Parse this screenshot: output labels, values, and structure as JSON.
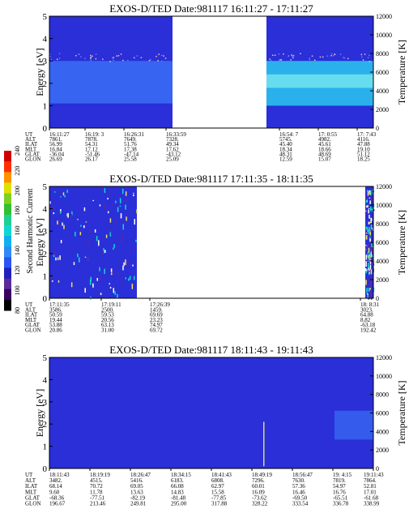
{
  "colorbar": {
    "label": "Second Harmonic Current",
    "ticks": [
      "80",
      "100",
      "120",
      "140",
      "160",
      "180",
      "200",
      "220",
      "240"
    ],
    "colors": [
      "#000000",
      "#3a0060",
      "#5a2a9a",
      "#2020c0",
      "#2a55f0",
      "#2f8af5",
      "#10b0f0",
      "#10d8d0",
      "#20d090",
      "#30c030",
      "#80d020",
      "#e0e000",
      "#ff9000",
      "#ff3000",
      "#d00000"
    ]
  },
  "chart_data": [
    {
      "type": "heatmap",
      "title": "EXOS-D/TED   Date:981117   16:11:27 - 17:11:27",
      "ylabel": "Energy [eV]",
      "ylabel_right": "Temperature [K]",
      "ylim": [
        0,
        5
      ],
      "ylim_right": [
        0,
        12000
      ],
      "yticks": [
        "0",
        "1",
        "2",
        "3",
        "4",
        "5"
      ],
      "yticks_right": [
        "0",
        "2000",
        "4000",
        "6000",
        "8000",
        "10000",
        "12000"
      ],
      "segments": [
        {
          "t_start": 0.0,
          "t_end": 0.38,
          "band_low_eV": 1.1,
          "band_high_eV": 3.0,
          "color": "#3a6df5"
        },
        {
          "t_start": 0.67,
          "t_end": 1.0,
          "band_low_eV": 1.0,
          "band_high_eV": 3.0,
          "color": "#2ac8f0"
        }
      ],
      "data_gap": [
        0.38,
        0.67
      ],
      "ephemeris_labels": [
        "UT",
        "ALT",
        "ILAT",
        "MLT",
        "GLAT",
        "GLON"
      ],
      "ephemeris": [
        {
          "ut": "16:11:27",
          "alt": "7861.",
          "ilat": "56.99",
          "mlt": "16.84",
          "glat": "-36.04",
          "glon": "26.69"
        },
        {
          "ut": "16:19: 3",
          "alt": "7878.",
          "ilat": "54.31",
          "mlt": "17.12",
          "glat": "-51.46",
          "glon": "26.17"
        },
        {
          "ut": "16:26:31",
          "alt": "7649.",
          "ilat": "51.76",
          "mlt": "17.38",
          "glat": "-47.14",
          "glon": "25.58"
        },
        {
          "ut": "16:33:59",
          "alt": "7328.",
          "ilat": "49.34",
          "mlt": "17.62",
          "glat": "-43.12",
          "glon": "25.09"
        },
        {
          "ut": "16:54: 7",
          "alt": "5745.",
          "ilat": "45.40",
          "mlt": "18.34",
          "glat": "48.31",
          "glon": "12.59"
        },
        {
          "ut": "17: 0:55",
          "alt": "4982.",
          "ilat": "45.61",
          "mlt": "18.66",
          "glat": "48.69",
          "glon": "15.07"
        },
        {
          "ut": "17: 7:43",
          "alt": "4116.",
          "ilat": "47.88",
          "mlt": "19.10",
          "glat": "51.12",
          "glon": "18.25"
        }
      ]
    },
    {
      "type": "heatmap",
      "title": "EXOS-D/TED   Date:981117   17:11:35 - 18:11:35",
      "ylabel": "Energy [eV]",
      "ylabel_right": "Temperature [K]",
      "ylim": [
        0,
        5
      ],
      "ylim_right": [
        0,
        12000
      ],
      "yticks": [
        "0",
        "1",
        "2",
        "3",
        "4",
        "5"
      ],
      "yticks_right": [
        "0",
        "2000",
        "4000",
        "6000",
        "8000",
        "10000",
        "12000"
      ],
      "segments": [
        {
          "t_start": 0.0,
          "t_end": 0.27,
          "band_low_eV": 0.0,
          "band_high_eV": 5.0,
          "color": "#2a55f0"
        },
        {
          "t_start": 0.975,
          "t_end": 1.0,
          "band_low_eV": 0.0,
          "band_high_eV": 5.0,
          "color": "#2a55f0"
        }
      ],
      "data_gap": [
        0.27,
        0.975
      ],
      "ephemeris_labels": [
        "UT",
        "ALT",
        "ILAT",
        "MLT",
        "GLAT",
        "GLON"
      ],
      "ephemeris": [
        {
          "ut": "17:11:35",
          "alt": "3586.",
          "ilat": "50.59",
          "mlt": "19.44",
          "glat": "53.88",
          "glon": "20.86"
        },
        {
          "ut": "17:19:11",
          "alt": "2500.",
          "ilat": "59.53",
          "mlt": "20.56",
          "glat": "63.13",
          "glon": "31.00"
        },
        {
          "ut": "17:26:39",
          "alt": "1459.",
          "ilat": "69.69",
          "mlt": "23.23",
          "glat": "74.97",
          "glon": "69.72"
        },
        {
          "ut": "18: 8:31",
          "alt": "3023.",
          "ilat": "64.88",
          "mlt": "8.82",
          "glat": "-63.18",
          "glon": "192.42"
        }
      ]
    },
    {
      "type": "heatmap",
      "title": "EXOS-D/TED   Date:981117   18:11:43 - 19:11:43",
      "ylabel": "Energy [eV]",
      "ylabel_right": "Temperature [K]",
      "ylim": [
        0,
        5
      ],
      "ylim_right": [
        0,
        12000
      ],
      "yticks": [
        "0",
        "1",
        "2",
        "3",
        "4",
        "5"
      ],
      "yticks_right": [
        "0",
        "2000",
        "4000",
        "6000",
        "8000",
        "10000",
        "12000"
      ],
      "segments": [
        {
          "t_start": 0.0,
          "t_end": 1.0,
          "band_low_eV": 0.0,
          "band_high_eV": 5.0,
          "color": "#2a2fd0"
        }
      ],
      "data_gap": [],
      "ephemeris_labels": [
        "UT",
        "ALT",
        "ILAT",
        "MLT",
        "GLAT",
        "GLON"
      ],
      "ephemeris": [
        {
          "ut": "18:11:43",
          "alt": "3482.",
          "ilat": "68.14",
          "mlt": "9.60",
          "glat": "-68.36",
          "glon": "196.67"
        },
        {
          "ut": "18:19:19",
          "alt": "4515.",
          "ilat": "70.72",
          "mlt": "11.78",
          "glat": "-77.51",
          "glon": "213.46"
        },
        {
          "ut": "18:26:47",
          "alt": "5416.",
          "ilat": "69.05",
          "mlt": "13.63",
          "glat": "-82.19",
          "glon": "249.81"
        },
        {
          "ut": "18:34:15",
          "alt": "6183.",
          "ilat": "66.08",
          "mlt": "14.83",
          "glat": "-81.48",
          "glon": "295.00"
        },
        {
          "ut": "18:41:43",
          "alt": "6808.",
          "ilat": "62.97",
          "mlt": "15.58",
          "glat": "-77.85",
          "glon": "317.88"
        },
        {
          "ut": "18:49:19",
          "alt": "7296.",
          "ilat": "60.01",
          "mlt": "16.09",
          "glat": "-73.62",
          "glon": "328.22"
        },
        {
          "ut": "18:56:47",
          "alt": "7630.",
          "ilat": "57.36",
          "mlt": "16.46",
          "glat": "-69.50",
          "glon": "333.54"
        },
        {
          "ut": "19: 4:15",
          "alt": "7819.",
          "ilat": "54.97",
          "mlt": "16.76",
          "glat": "-65.51",
          "glon": "336.78"
        },
        {
          "ut": "19:11:43",
          "alt": "7864.",
          "ilat": "52.81",
          "mlt": "17.01",
          "glat": "-61.68",
          "glon": "338.99"
        }
      ]
    }
  ]
}
